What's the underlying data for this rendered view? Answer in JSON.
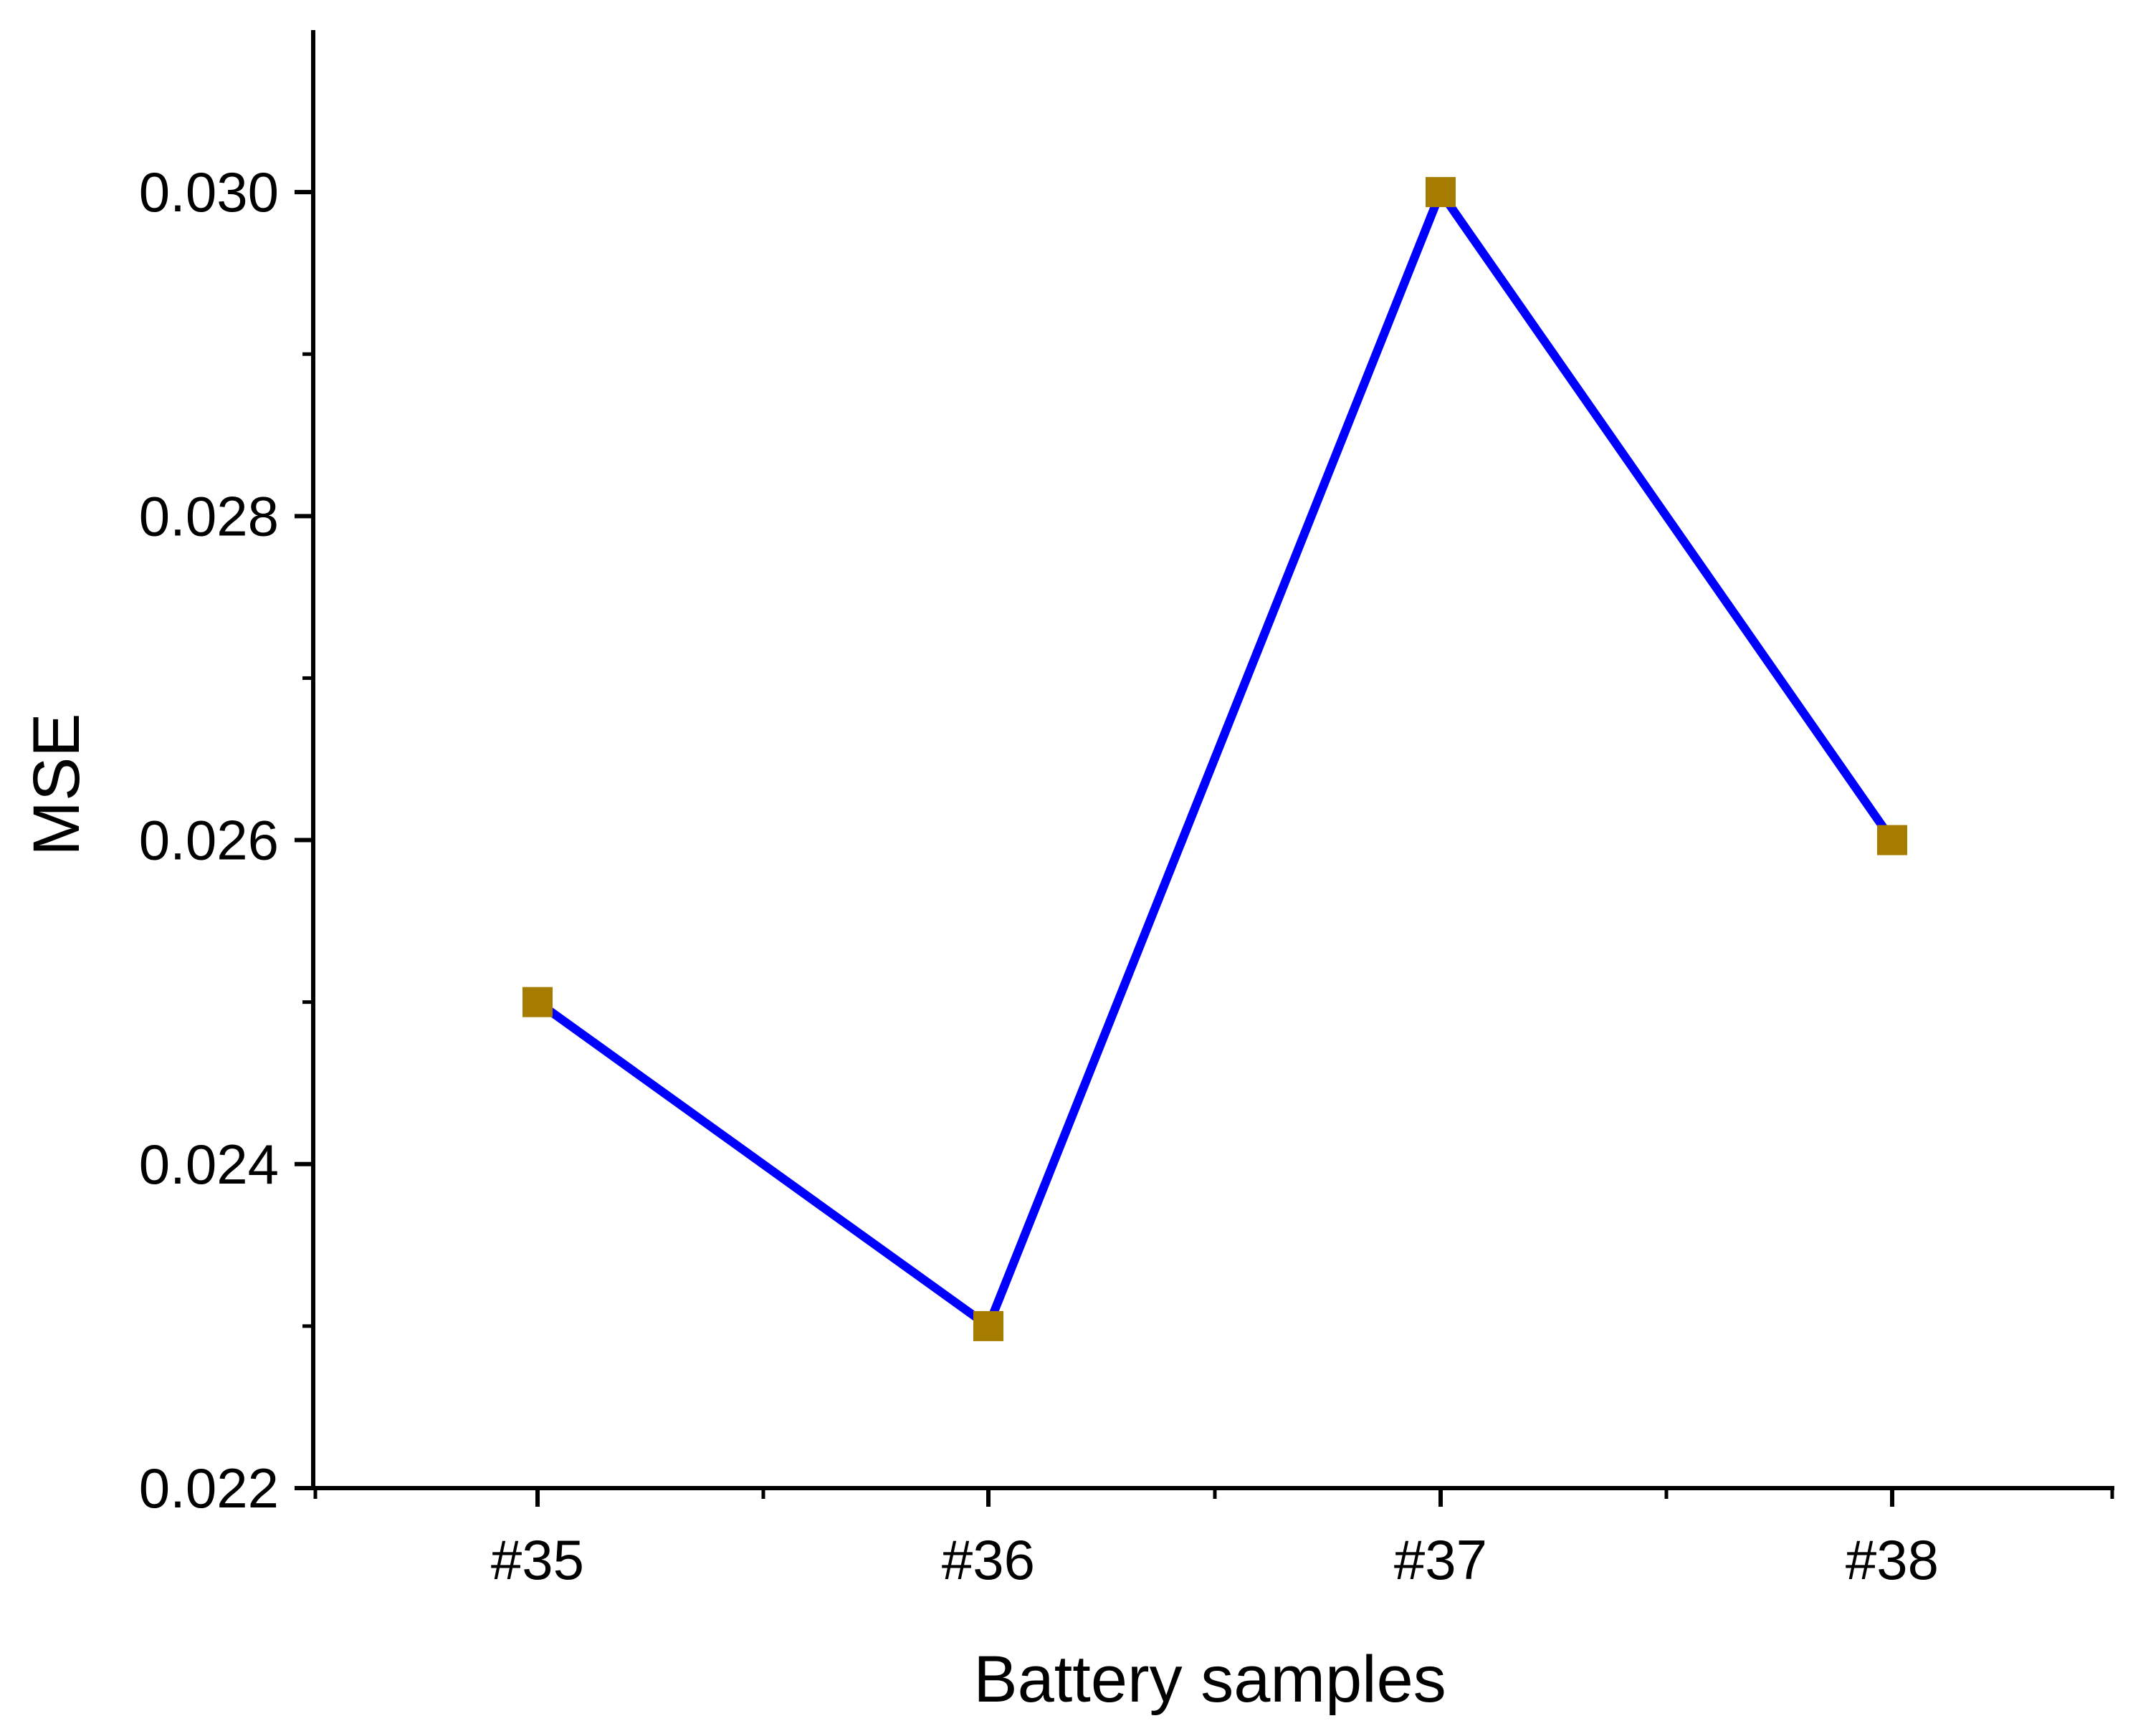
{
  "chart_data": {
    "type": "line",
    "categories": [
      "#35",
      "#36",
      "#37",
      "#38"
    ],
    "series": [
      {
        "values": [
          0.025,
          0.023,
          0.03,
          0.026
        ],
        "line_color": "#0000ff",
        "marker": "square",
        "marker_color": "#a67c00"
      }
    ],
    "title": "",
    "xlabel": "Battery samples",
    "ylabel": "MSE",
    "ylim": [
      0.022,
      0.031
    ],
    "yticks": [
      0.022,
      0.024,
      0.026,
      0.028,
      0.03
    ],
    "ytick_labels": [
      "0.022",
      "0.024",
      "0.026",
      "0.028",
      "0.030"
    ],
    "y_minor_ticks": [
      0.023,
      0.025,
      0.027,
      0.029
    ],
    "grid": false,
    "legend": "none",
    "axis_color": "#000000"
  }
}
